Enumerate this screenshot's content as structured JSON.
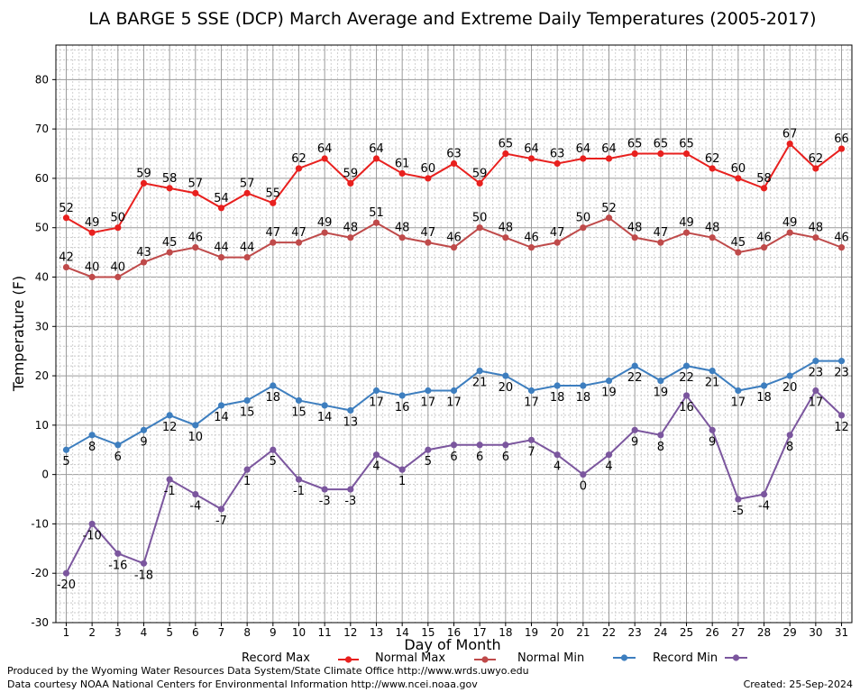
{
  "chart_data": {
    "type": "line",
    "title": "LA BARGE 5 SSE (DCP) March Average and Extreme Daily Temperatures (2005-2017)",
    "xlabel": "Day of Month",
    "ylabel": "Temperature (F)",
    "ylim": [
      -30,
      87
    ],
    "xlim": [
      0.6,
      31.4
    ],
    "y_ticks": [
      -30,
      -20,
      -10,
      0,
      10,
      20,
      30,
      40,
      50,
      60,
      70,
      80
    ],
    "grid": true,
    "legend_position": "bottom",
    "x": [
      1,
      2,
      3,
      4,
      5,
      6,
      7,
      8,
      9,
      10,
      11,
      12,
      13,
      14,
      15,
      16,
      17,
      18,
      19,
      20,
      21,
      22,
      23,
      24,
      25,
      26,
      27,
      28,
      29,
      30,
      31
    ],
    "series": [
      {
        "name": "Record Max",
        "color": "#e8201e",
        "values": [
          52,
          49,
          50,
          59,
          58,
          57,
          54,
          57,
          55,
          62,
          64,
          59,
          64,
          61,
          60,
          63,
          59,
          65,
          64,
          63,
          64,
          64,
          65,
          65,
          65,
          62,
          60,
          58,
          67,
          62,
          66
        ]
      },
      {
        "name": "Normal Max",
        "color": "#bf4a4a",
        "values": [
          42,
          40,
          40,
          43,
          45,
          46,
          44,
          44,
          47,
          47,
          49,
          48,
          51,
          48,
          47,
          46,
          50,
          48,
          46,
          47,
          50,
          52,
          48,
          47,
          49,
          48,
          45,
          46,
          49,
          48,
          46
        ]
      },
      {
        "name": "Normal Min",
        "color": "#3d7ebf",
        "values": [
          5,
          8,
          6,
          9,
          12,
          10,
          14,
          15,
          18,
          15,
          14,
          13,
          17,
          16,
          17,
          17,
          21,
          20,
          17,
          18,
          18,
          19,
          22,
          19,
          22,
          21,
          17,
          18,
          20,
          23,
          23
        ]
      },
      {
        "name": "Record Min",
        "color": "#7b569e",
        "values": [
          -20,
          -10,
          -16,
          -18,
          -1,
          -4,
          -7,
          1,
          5,
          -1,
          -3,
          -3,
          4,
          1,
          5,
          6,
          6,
          6,
          7,
          4,
          0,
          4,
          9,
          8,
          16,
          9,
          -5,
          -4,
          8,
          17,
          12
        ]
      }
    ]
  },
  "footer": {
    "produced_by": "Produced by the Wyoming Water Resources Data System/State Climate Office http://www.wrds.uwyo.edu",
    "courtesy": "Data courtesy NOAA National Centers for Environmental Information http://www.ncei.noaa.gov",
    "created": "Created:  25-Sep-2024"
  }
}
